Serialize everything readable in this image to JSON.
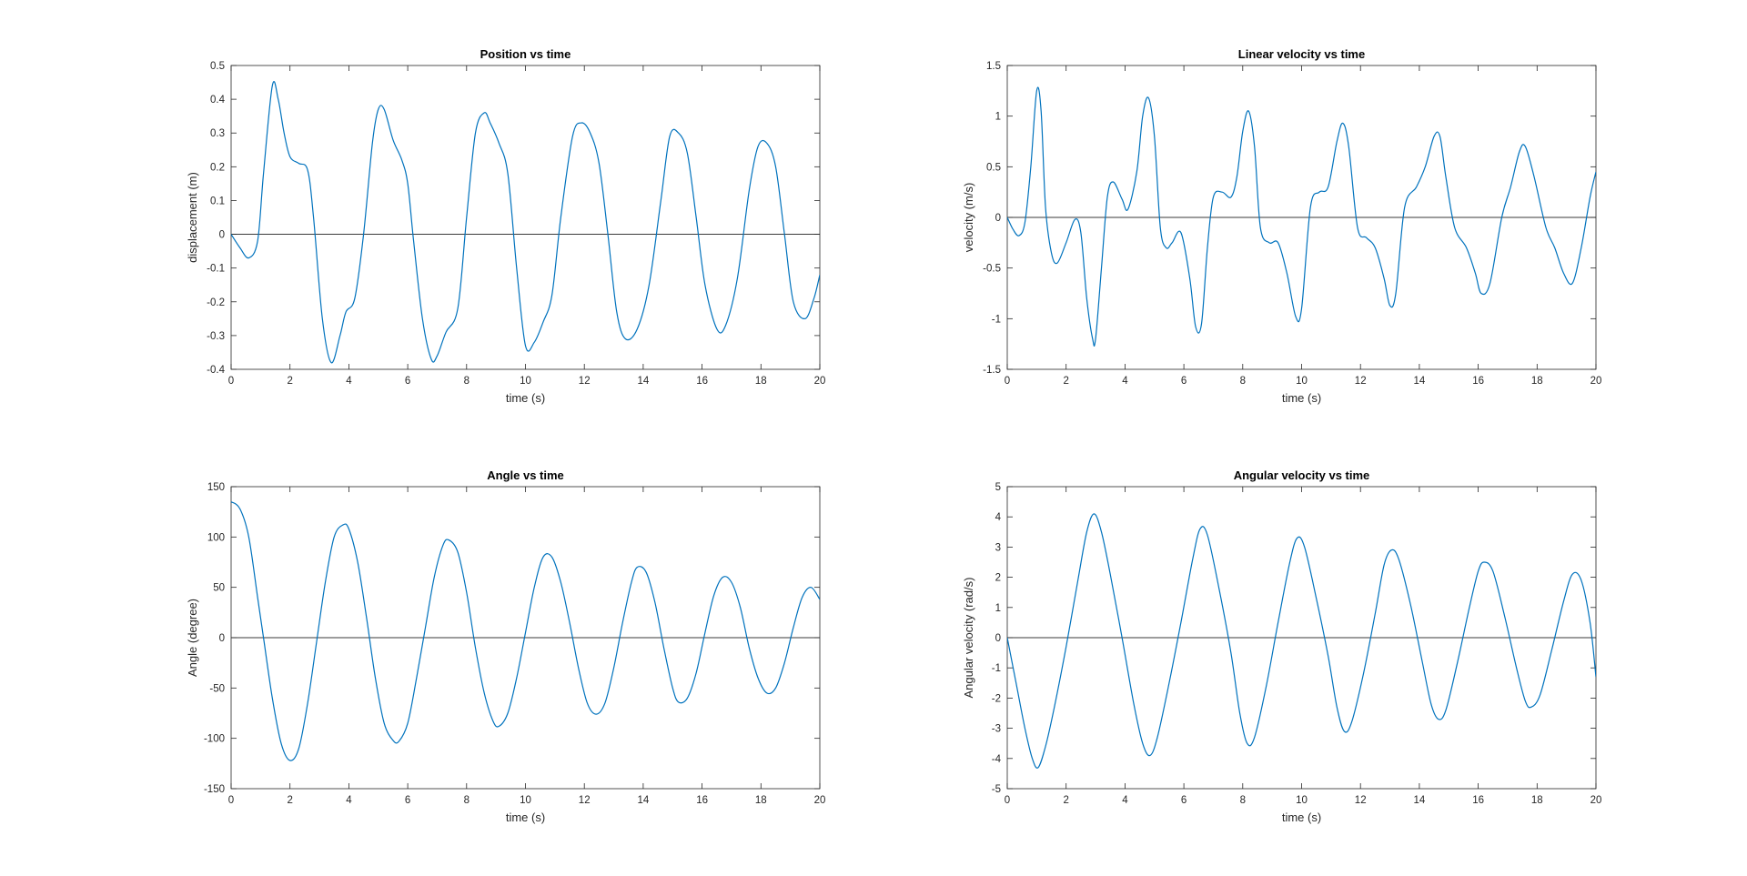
{
  "figure": {
    "background": "#ffffff",
    "line_color": "#0072bd",
    "axes_color": "#262626",
    "zero_line_color": "#3a3a3a"
  },
  "chart_data": [
    {
      "type": "line",
      "title": "Position vs time",
      "xlabel": "time (s)",
      "ylabel": "displacement (m)",
      "xlim": [
        0,
        20
      ],
      "ylim": [
        -0.4,
        0.5
      ],
      "xticks": [
        0,
        2,
        4,
        6,
        8,
        10,
        12,
        14,
        16,
        18,
        20
      ],
      "yticks": [
        -0.4,
        -0.3,
        -0.2,
        -0.1,
        0,
        0.1,
        0.2,
        0.3,
        0.4,
        0.5
      ],
      "reference_line_y": 0,
      "grid": false,
      "legend": "none",
      "series": [
        {
          "x": [
            0,
            0.3,
            0.6,
            0.9,
            1.1,
            1.4,
            1.6,
            1.8,
            2.0,
            2.3,
            2.6,
            2.8,
            3.1,
            3.4,
            3.7,
            3.9,
            4.2,
            4.5,
            4.8,
            5.0,
            5.2,
            5.5,
            5.8,
            6.0,
            6.2,
            6.5,
            6.8,
            7.0,
            7.3,
            7.7,
            8.0,
            8.3,
            8.6,
            8.8,
            9.1,
            9.4,
            9.7,
            10.0,
            10.3,
            10.6,
            10.9,
            11.2,
            11.6,
            11.9,
            12.2,
            12.5,
            12.8,
            13.1,
            13.4,
            13.8,
            14.2,
            14.6,
            14.9,
            15.2,
            15.5,
            15.8,
            16.1,
            16.5,
            16.8,
            17.2,
            17.6,
            17.9,
            18.2,
            18.5,
            18.8,
            19.1,
            19.5,
            19.8,
            20.0
          ],
          "y": [
            0.0,
            -0.04,
            -0.07,
            -0.02,
            0.18,
            0.44,
            0.4,
            0.3,
            0.23,
            0.21,
            0.19,
            0.05,
            -0.25,
            -0.38,
            -0.3,
            -0.23,
            -0.19,
            0.0,
            0.27,
            0.37,
            0.37,
            0.28,
            0.22,
            0.15,
            -0.02,
            -0.25,
            -0.37,
            -0.36,
            -0.29,
            -0.22,
            0.05,
            0.3,
            0.36,
            0.33,
            0.27,
            0.18,
            -0.1,
            -0.33,
            -0.32,
            -0.26,
            -0.18,
            0.05,
            0.29,
            0.33,
            0.3,
            0.21,
            0.0,
            -0.23,
            -0.31,
            -0.28,
            -0.15,
            0.1,
            0.29,
            0.3,
            0.24,
            0.05,
            -0.15,
            -0.28,
            -0.27,
            -0.13,
            0.13,
            0.26,
            0.27,
            0.2,
            0.0,
            -0.2,
            -0.25,
            -0.19,
            -0.12
          ]
        }
      ]
    },
    {
      "type": "line",
      "title": "Linear velocity vs time",
      "xlabel": "time (s)",
      "ylabel": "velocity (m/s)",
      "xlim": [
        0,
        20
      ],
      "ylim": [
        -1.5,
        1.5
      ],
      "xticks": [
        0,
        2,
        4,
        6,
        8,
        10,
        12,
        14,
        16,
        18,
        20
      ],
      "yticks": [
        -1.5,
        -1,
        -0.5,
        0,
        0.5,
        1,
        1.5
      ],
      "reference_line_y": 0,
      "grid": false,
      "legend": "none",
      "series": [
        {
          "x": [
            0,
            0.2,
            0.4,
            0.6,
            0.8,
            1.0,
            1.15,
            1.3,
            1.5,
            1.7,
            2.0,
            2.3,
            2.5,
            2.7,
            2.9,
            3.0,
            3.2,
            3.4,
            3.6,
            3.9,
            4.1,
            4.4,
            4.6,
            4.8,
            5.0,
            5.2,
            5.4,
            5.6,
            5.9,
            6.2,
            6.4,
            6.6,
            6.8,
            7.0,
            7.3,
            7.6,
            7.8,
            8.0,
            8.2,
            8.4,
            8.6,
            8.9,
            9.2,
            9.5,
            9.8,
            10.0,
            10.3,
            10.6,
            10.9,
            11.2,
            11.4,
            11.6,
            11.9,
            12.2,
            12.5,
            12.8,
            13.0,
            13.2,
            13.5,
            13.9,
            14.2,
            14.5,
            14.7,
            14.9,
            15.2,
            15.6,
            15.9,
            16.1,
            16.4,
            16.8,
            17.1,
            17.4,
            17.6,
            17.9,
            18.3,
            18.6,
            18.9,
            19.2,
            19.5,
            19.8,
            20.0
          ],
          "y": [
            0.0,
            -0.12,
            -0.18,
            -0.05,
            0.5,
            1.25,
            1.05,
            0.1,
            -0.35,
            -0.45,
            -0.25,
            -0.02,
            -0.15,
            -0.8,
            -1.2,
            -1.2,
            -0.5,
            0.2,
            0.35,
            0.18,
            0.08,
            0.45,
            1.0,
            1.18,
            0.8,
            -0.1,
            -0.3,
            -0.25,
            -0.15,
            -0.6,
            -1.08,
            -1.05,
            -0.3,
            0.2,
            0.25,
            0.2,
            0.4,
            0.85,
            1.05,
            0.7,
            -0.1,
            -0.25,
            -0.25,
            -0.55,
            -0.98,
            -0.9,
            0.1,
            0.25,
            0.3,
            0.75,
            0.93,
            0.7,
            -0.1,
            -0.2,
            -0.3,
            -0.6,
            -0.87,
            -0.75,
            0.1,
            0.3,
            0.5,
            0.8,
            0.8,
            0.4,
            -0.1,
            -0.3,
            -0.55,
            -0.75,
            -0.65,
            0.0,
            0.3,
            0.65,
            0.7,
            0.4,
            -0.1,
            -0.3,
            -0.55,
            -0.65,
            -0.3,
            0.2,
            0.45
          ]
        }
      ]
    },
    {
      "type": "line",
      "title": "Angle vs time",
      "xlabel": "time (s)",
      "ylabel": "Angle (degree)",
      "xlim": [
        0,
        20
      ],
      "ylim": [
        -150,
        150
      ],
      "xticks": [
        0,
        2,
        4,
        6,
        8,
        10,
        12,
        14,
        16,
        18,
        20
      ],
      "yticks": [
        -150,
        -100,
        -50,
        0,
        50,
        100,
        150
      ],
      "reference_line_y": 0,
      "grid": false,
      "legend": "none",
      "series": [
        {
          "x": [
            0,
            0.3,
            0.6,
            0.9,
            1.1,
            1.4,
            1.7,
            2.0,
            2.3,
            2.6,
            2.9,
            3.2,
            3.5,
            3.8,
            4.0,
            4.3,
            4.6,
            4.9,
            5.2,
            5.5,
            5.7,
            6.0,
            6.3,
            6.6,
            6.9,
            7.2,
            7.4,
            7.7,
            8.0,
            8.3,
            8.6,
            8.9,
            9.1,
            9.4,
            9.7,
            10.0,
            10.3,
            10.6,
            10.9,
            11.2,
            11.5,
            11.8,
            12.1,
            12.4,
            12.7,
            13.0,
            13.3,
            13.6,
            13.8,
            14.1,
            14.4,
            14.7,
            15.0,
            15.2,
            15.5,
            15.8,
            16.1,
            16.4,
            16.7,
            17.0,
            17.3,
            17.6,
            17.9,
            18.2,
            18.5,
            18.8,
            19.1,
            19.4,
            19.7,
            20.0
          ],
          "y": [
            135,
            128,
            100,
            40,
            0,
            -60,
            -105,
            -122,
            -110,
            -65,
            -5,
            55,
            100,
            112,
            108,
            75,
            20,
            -40,
            -85,
            -102,
            -103,
            -85,
            -40,
            10,
            60,
            92,
            97,
            85,
            45,
            -10,
            -55,
            -83,
            -88,
            -75,
            -40,
            5,
            50,
            80,
            80,
            55,
            15,
            -30,
            -65,
            -76,
            -65,
            -30,
            15,
            55,
            70,
            65,
            35,
            -10,
            -50,
            -64,
            -60,
            -35,
            5,
            42,
            60,
            55,
            30,
            -10,
            -40,
            -55,
            -50,
            -25,
            10,
            40,
            50,
            38
          ]
        }
      ]
    },
    {
      "type": "line",
      "title": "Angular velocity vs time",
      "xlabel": "time (s)",
      "ylabel": "Angular velocity (rad/s)",
      "xlim": [
        0,
        20
      ],
      "ylim": [
        -5,
        5
      ],
      "xticks": [
        0,
        2,
        4,
        6,
        8,
        10,
        12,
        14,
        16,
        18,
        20
      ],
      "yticks": [
        -5,
        -4,
        -3,
        -2,
        -1,
        0,
        1,
        2,
        3,
        4,
        5
      ],
      "reference_line_y": 0,
      "grid": false,
      "legend": "none",
      "series": [
        {
          "x": [
            0,
            0.3,
            0.6,
            0.85,
            1.05,
            1.3,
            1.6,
            2.0,
            2.4,
            2.7,
            2.95,
            3.2,
            3.5,
            3.9,
            4.3,
            4.6,
            4.85,
            5.1,
            5.5,
            5.9,
            6.3,
            6.55,
            6.8,
            7.2,
            7.6,
            7.9,
            8.15,
            8.4,
            8.8,
            9.2,
            9.6,
            9.85,
            10.1,
            10.5,
            10.9,
            11.2,
            11.45,
            11.7,
            12.1,
            12.5,
            12.8,
            13.05,
            13.3,
            13.7,
            14.1,
            14.4,
            14.65,
            14.9,
            15.3,
            15.7,
            16.0,
            16.2,
            16.5,
            16.9,
            17.3,
            17.6,
            17.8,
            18.1,
            18.5,
            18.9,
            19.2,
            19.5,
            19.8,
            20.0
          ],
          "y": [
            0.0,
            -1.5,
            -3.0,
            -4.0,
            -4.3,
            -3.6,
            -2.3,
            -0.3,
            1.9,
            3.5,
            4.1,
            3.5,
            2.1,
            0.0,
            -2.2,
            -3.5,
            -3.9,
            -3.3,
            -1.5,
            0.5,
            2.6,
            3.6,
            3.4,
            1.6,
            -0.5,
            -2.5,
            -3.5,
            -3.3,
            -1.6,
            0.5,
            2.5,
            3.3,
            3.0,
            1.3,
            -0.6,
            -2.3,
            -3.1,
            -2.8,
            -1.2,
            0.8,
            2.4,
            2.9,
            2.6,
            1.1,
            -0.8,
            -2.2,
            -2.7,
            -2.4,
            -0.8,
            1.0,
            2.2,
            2.5,
            2.2,
            0.7,
            -1.0,
            -2.1,
            -2.3,
            -1.9,
            -0.4,
            1.2,
            2.1,
            1.9,
            0.5,
            -1.3
          ]
        }
      ]
    }
  ]
}
